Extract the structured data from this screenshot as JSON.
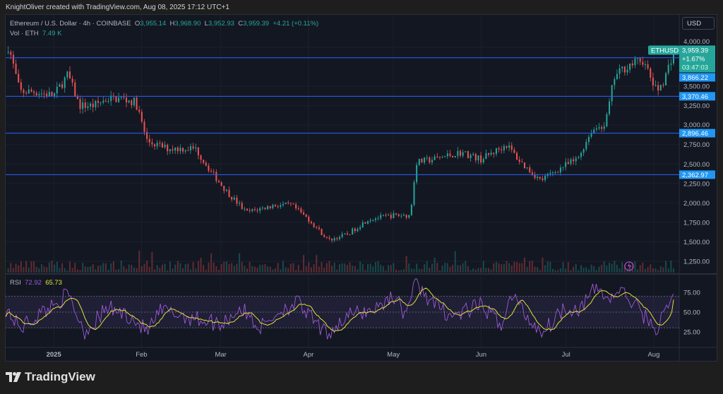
{
  "credit": "KnightOliver created with TradingView.com, Aug 08, 2025 17:12 UTC+1",
  "legend": {
    "symbol": "Ethereum / U.S. Dollar · 4h · COINBASE",
    "open_label": "O",
    "open": "3,955.14",
    "high_label": "H",
    "high": "3,968.90",
    "low_label": "L",
    "low": "3,952.93",
    "close_label": "C",
    "close": "3,959.39",
    "change": "+4.21 (+0.11%)",
    "vol_label": "Vol · ETH",
    "vol": "7.49 K"
  },
  "currency_button": "USD",
  "price_tag": {
    "symbol": "ETHUSD",
    "price": "3,959.39",
    "change": "+1.67%",
    "countdown": "03:47:03"
  },
  "rsi_legend": {
    "label": "RSI",
    "rsi": "72.92",
    "ma": "65.73"
  },
  "brand": "TradingView",
  "colors": {
    "up": "#26a69a",
    "down": "#ef5350",
    "level": "#2962ff",
    "level_label": "#2196f3",
    "rsi": "#9c5ad6",
    "rsi_ma": "#e0e03a"
  },
  "chart_data": [
    {
      "type": "candlestick",
      "title": "Ethereum / U.S. Dollar · 4h · COINBASE",
      "scale": "linear",
      "ylim": [
        1150,
        4150
      ],
      "xlim": [
        "2024-12-15",
        "2025-08-10"
      ],
      "y_ticks": [
        "1,250.00",
        "1,500.00",
        "1,750.00",
        "2,000.00",
        "2,250.00",
        "2,500.00",
        "2,750.00",
        "3,000.00",
        "3,250.00",
        "3,500.00",
        "4,000.00"
      ],
      "y_tick_values": [
        1250,
        1500,
        1750,
        2000,
        2250,
        2500,
        2750,
        3000,
        3250,
        3500,
        4000
      ],
      "x_ticks": [
        {
          "label": "2025",
          "date": "2025-01-01"
        },
        {
          "label": "Feb",
          "date": "2025-02-01"
        },
        {
          "label": "Mar",
          "date": "2025-03-01"
        },
        {
          "label": "Apr",
          "date": "2025-04-01"
        },
        {
          "label": "May",
          "date": "2025-05-01"
        },
        {
          "label": "Jun",
          "date": "2025-06-01"
        },
        {
          "label": "Jul",
          "date": "2025-07-01"
        },
        {
          "label": "Aug",
          "date": "2025-08-01"
        }
      ],
      "horizontal_levels": [
        {
          "value": 3866.22,
          "label": "3,866.22"
        },
        {
          "value": 3370.46,
          "label": "3,370.46"
        },
        {
          "value": 2896.46,
          "label": "2,896.46"
        },
        {
          "value": 2362.97,
          "label": "2,362.97"
        }
      ],
      "approx_close": [
        [
          "2024-12-15",
          3930
        ],
        [
          "2024-12-16",
          4020
        ],
        [
          "2024-12-20",
          3430
        ],
        [
          "2024-12-25",
          3430
        ],
        [
          "2025-01-01",
          3380
        ],
        [
          "2025-01-06",
          3650
        ],
        [
          "2025-01-10",
          3250
        ],
        [
          "2025-01-15",
          3250
        ],
        [
          "2025-01-20",
          3340
        ],
        [
          "2025-01-25",
          3340
        ],
        [
          "2025-01-30",
          3290
        ],
        [
          "2025-02-03",
          2790
        ],
        [
          "2025-02-10",
          2700
        ],
        [
          "2025-02-20",
          2700
        ],
        [
          "2025-02-25",
          2430
        ],
        [
          "2025-03-03",
          2150
        ],
        [
          "2025-03-10",
          1880
        ],
        [
          "2025-03-20",
          1970
        ],
        [
          "2025-03-26",
          1970
        ],
        [
          "2025-04-01",
          1790
        ],
        [
          "2025-04-08",
          1520
        ],
        [
          "2025-04-15",
          1600
        ],
        [
          "2025-04-22",
          1790
        ],
        [
          "2025-05-01",
          1840
        ],
        [
          "2025-05-07",
          1840
        ],
        [
          "2025-05-09",
          2520
        ],
        [
          "2025-05-15",
          2560
        ],
        [
          "2025-05-25",
          2650
        ],
        [
          "2025-06-01",
          2560
        ],
        [
          "2025-06-10",
          2750
        ],
        [
          "2025-06-15",
          2520
        ],
        [
          "2025-06-22",
          2290
        ],
        [
          "2025-06-30",
          2470
        ],
        [
          "2025-07-05",
          2560
        ],
        [
          "2025-07-10",
          2930
        ],
        [
          "2025-07-15",
          3020
        ],
        [
          "2025-07-18",
          3610
        ],
        [
          "2025-07-22",
          3750
        ],
        [
          "2025-07-28",
          3840
        ],
        [
          "2025-08-02",
          3430
        ],
        [
          "2025-08-05",
          3610
        ],
        [
          "2025-08-08",
          3959.39
        ]
      ]
    },
    {
      "type": "line",
      "title": "RSI",
      "ylim": [
        5,
        95
      ],
      "y_ticks": [
        "25.00",
        "50.00",
        "75.00"
      ],
      "y_tick_values": [
        25,
        50,
        75
      ],
      "band": [
        30,
        70
      ],
      "midline": 50,
      "series": [
        {
          "name": "RSI",
          "current": 72.92
        },
        {
          "name": "RSI MA",
          "current": 65.73
        }
      ],
      "approx_rsi": [
        [
          "2024-12-15",
          55
        ],
        [
          "2024-12-20",
          30
        ],
        [
          "2024-12-28",
          50
        ],
        [
          "2025-01-06",
          72
        ],
        [
          "2025-01-12",
          25
        ],
        [
          "2025-01-20",
          55
        ],
        [
          "2025-01-28",
          45
        ],
        [
          "2025-02-03",
          25
        ],
        [
          "2025-02-08",
          52
        ],
        [
          "2025-02-20",
          42
        ],
        [
          "2025-03-01",
          35
        ],
        [
          "2025-03-08",
          55
        ],
        [
          "2025-03-15",
          30
        ],
        [
          "2025-03-22",
          52
        ],
        [
          "2025-03-28",
          62
        ],
        [
          "2025-04-07",
          22
        ],
        [
          "2025-04-15",
          45
        ],
        [
          "2025-04-25",
          55
        ],
        [
          "2025-05-01",
          72
        ],
        [
          "2025-05-05",
          48
        ],
        [
          "2025-05-09",
          88
        ],
        [
          "2025-05-15",
          60
        ],
        [
          "2025-05-22",
          45
        ],
        [
          "2025-06-01",
          58
        ],
        [
          "2025-06-08",
          35
        ],
        [
          "2025-06-12",
          72
        ],
        [
          "2025-06-18",
          40
        ],
        [
          "2025-06-23",
          25
        ],
        [
          "2025-06-30",
          55
        ],
        [
          "2025-07-06",
          55
        ],
        [
          "2025-07-12",
          82
        ],
        [
          "2025-07-16",
          65
        ],
        [
          "2025-07-20",
          78
        ],
        [
          "2025-07-25",
          60
        ],
        [
          "2025-08-02",
          28
        ],
        [
          "2025-08-05",
          50
        ],
        [
          "2025-08-08",
          72.92
        ]
      ]
    }
  ]
}
